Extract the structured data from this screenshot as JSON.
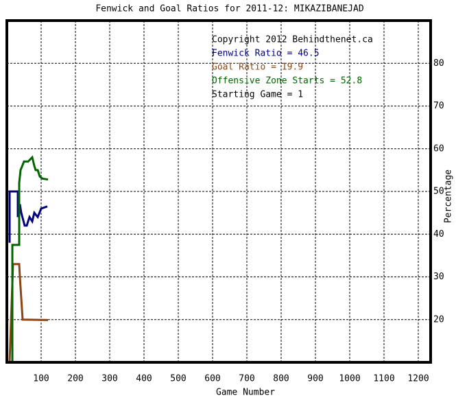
{
  "chart_data": {
    "type": "line",
    "title": "Fenwick and Goal Ratios for 2011-12: MIKAZIBANEJAD",
    "x_label": "Game Number",
    "y_label": "Percentage",
    "annotations": [
      "Copyright 2012 Behindthenet.ca",
      "Starting Game = 1"
    ],
    "series": [
      {
        "name": "Fenwick Ratio = 46.5",
        "color": "#000080",
        "x": [
          8,
          8,
          32,
          32,
          38,
          42,
          52,
          58,
          66,
          74,
          80,
          90,
          100,
          118
        ],
        "values": [
          38,
          50,
          50,
          44,
          47,
          45,
          42,
          42,
          44,
          43,
          45,
          44,
          46,
          46.5
        ]
      },
      {
        "name": "Goal Ratio = 19.9",
        "color": "#8b4513",
        "x": [
          8,
          18,
          22,
          36,
          38,
          42,
          46,
          120
        ],
        "values": [
          10,
          33,
          33,
          33,
          30,
          25,
          20,
          19.9
        ]
      },
      {
        "name": "Offensive Zone Starts = 52.8",
        "color": "#006400",
        "x": [
          16,
          16,
          36,
          36,
          40,
          50,
          62,
          74,
          80,
          84,
          90,
          96,
          104,
          120
        ],
        "values": [
          10,
          37.5,
          37.5,
          52,
          55,
          57,
          57,
          58,
          56,
          55,
          55,
          53.5,
          53,
          52.8
        ]
      }
    ],
    "xlim": [
      0,
      1236
    ],
    "xticks": [
      100,
      200,
      300,
      400,
      500,
      600,
      700,
      800,
      900,
      1000,
      1100,
      1200
    ],
    "ylim": [
      10,
      90
    ],
    "yticks": [
      20,
      30,
      40,
      50,
      60,
      70,
      80
    ],
    "grid": true
  }
}
